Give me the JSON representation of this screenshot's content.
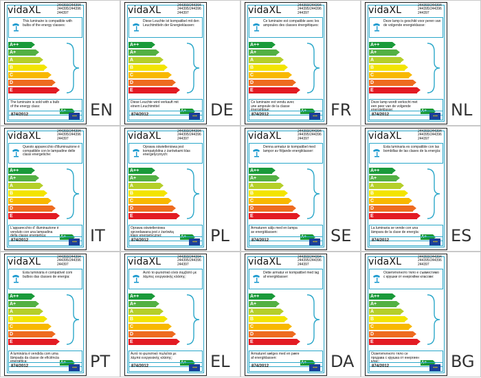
{
  "brand": "vidaXL",
  "models": [
    "244393/244394",
    "244395/244396",
    "244397"
  ],
  "regulation": "874/2012",
  "classes": [
    "A++",
    "A+",
    "A",
    "B",
    "C",
    "D",
    "E"
  ],
  "class_colors": [
    "#1a9a3a",
    "#53b043",
    "#b5cf2a",
    "#f3e400",
    "#f8b800",
    "#ee6b1f",
    "#e31b23"
  ],
  "accent_color": "#2aa7c9",
  "sold_class": "A+",
  "icons": [
    "lamp-icon",
    "eu-flag-icon"
  ],
  "labels": [
    {
      "code": "EN",
      "compat": "This luminaire is compatible with bulbs of the energy classes:",
      "sold": "The luminaire is sold with a bulb of the energy class:"
    },
    {
      "code": "DE",
      "compat": "Diese Leuchte ist kompatibel mit den Leuchtmitteln der Energieklassen:",
      "sold": "Diese Leuchte wird verkauft mit einem Leuchtmittel"
    },
    {
      "code": "FR",
      "compat": "Ce luminaire est compatible avec les ampoules des classes énergétiques:",
      "sold": "Ce luminaire est vendu avec une ampoule de la classe énergétique:"
    },
    {
      "code": "NL",
      "compat": "Deze lamp is geschikt voor peren van de volgende energieklasse:",
      "sold": "Deze lamp wordt verkocht met een peer van de volgende energieklasse:"
    },
    {
      "code": "IT",
      "compat": "Questo apparecchio d'illuminazione è compatibile con le lampadine delle classi energetiche:",
      "sold": "L'apparecchio d' illuminazione è venduto con una lampadina della classe energetica:"
    },
    {
      "code": "PL",
      "compat": "Oprawa oświetleniowa jest kompatybilna z żarówkami klas energetycznych:",
      "sold": "Oprawa oświetleniowa sprzedawana jest z żarówką klasy energetycznej:"
    },
    {
      "code": "SE",
      "compat": "Denna armatur är kompatibel med lampor av följande energiklasser:",
      "sold": "Armaturen säljs med en lampa av energiklassen:"
    },
    {
      "code": "ES",
      "compat": "Esta luminaria es compatible con las bombillas de las clases de la energía:",
      "sold": "La luminaria se vende con una lámpara de la clase de energía:"
    },
    {
      "code": "PT",
      "compat": "Esta luminária é compatível com bulbos das classes de energia:",
      "sold": "A luminária é vendida com uma lâmpada da classe de eficiência energética:"
    },
    {
      "code": "EL",
      "compat": "Αυτό το φωτιστικό είναι συμβατό με λάμπες ενεργειακής κλάσης:",
      "sold": "Αυτό το φωτιστικό πωλείται με λάμπα ενεργειακής κλάσης:"
    },
    {
      "code": "DA",
      "compat": "Dette armatur er kompatibel med lag af energiklasser:",
      "sold": "Armaturet sælges med en pære af energiklassen:"
    },
    {
      "code": "BG",
      "compat": "Осветителното тяло е съвместимо с крушки от енергийни класове:",
      "sold": "Осветителното тяло се продава с крушка от енергиен клас:"
    }
  ]
}
